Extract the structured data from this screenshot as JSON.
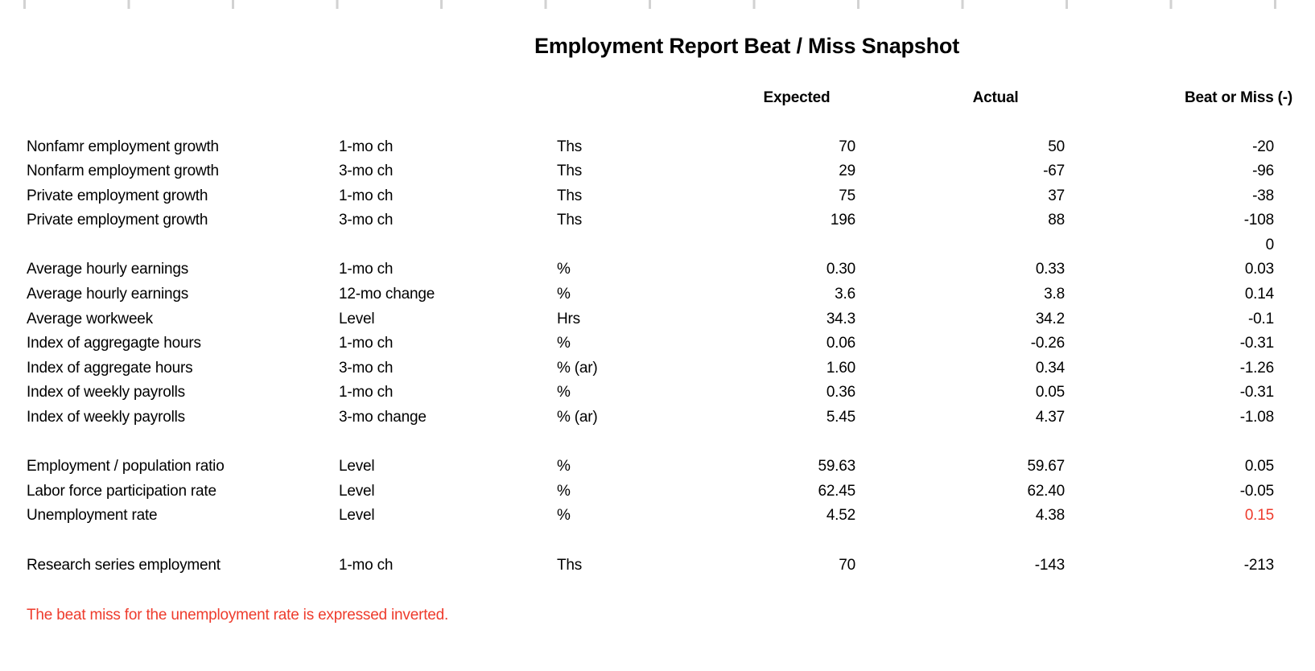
{
  "title": "Employment Report Beat / Miss Snapshot",
  "colors": {
    "text": "#000000",
    "highlight_red": "#ee3b2c",
    "gridline_gray": "#d2d2d2"
  },
  "table": {
    "headers": {
      "expected": "Expected",
      "actual": "Actual",
      "beat_or_miss": "Beat or Miss (-)"
    },
    "rows": [
      {
        "label": "Nonfamr employment growth",
        "change": "1-mo ch",
        "unit": "Ths",
        "expected": "70",
        "actual": "50",
        "beat": "-20",
        "beat_red": false
      },
      {
        "label": "Nonfarm employment growth",
        "change": "3-mo ch",
        "unit": "Ths",
        "expected": "29",
        "actual": "-67",
        "beat": "-96",
        "beat_red": false
      },
      {
        "label": "Private employment growth",
        "change": "1-mo ch",
        "unit": "Ths",
        "expected": "75",
        "actual": "37",
        "beat": "-38",
        "beat_red": false
      },
      {
        "label": "Private employment growth",
        "change": "3-mo ch",
        "unit": "Ths",
        "expected": "196",
        "actual": "88",
        "beat": "-108",
        "beat_red": false
      },
      {
        "label": "",
        "change": "",
        "unit": "",
        "expected": "",
        "actual": "",
        "beat": "0",
        "beat_red": false
      },
      {
        "label": "Average hourly earnings",
        "change": "1-mo ch",
        "unit": "%",
        "expected": "0.30",
        "actual": "0.33",
        "beat": "0.03",
        "beat_red": false
      },
      {
        "label": "Average hourly earnings",
        "change": "12-mo change",
        "unit": "%",
        "expected": "3.6",
        "actual": "3.8",
        "beat": "0.14",
        "beat_red": false
      },
      {
        "label": "Average workweek",
        "change": "Level",
        "unit": "Hrs",
        "expected": "34.3",
        "actual": "34.2",
        "beat": "-0.1",
        "beat_red": false
      },
      {
        "label": "Index of aggregagte hours",
        "change": "1-mo ch",
        "unit": "%",
        "expected": "0.06",
        "actual": "-0.26",
        "beat": "-0.31",
        "beat_red": false
      },
      {
        "label": "Index of aggregate hours",
        "change": "3-mo ch",
        "unit": "% (ar)",
        "expected": "1.60",
        "actual": "0.34",
        "beat": "-1.26",
        "beat_red": false
      },
      {
        "label": "Index of weekly payrolls",
        "change": "1-mo ch",
        "unit": "%",
        "expected": "0.36",
        "actual": "0.05",
        "beat": "-0.31",
        "beat_red": false
      },
      {
        "label": "Index of weekly payrolls",
        "change": "3-mo change",
        "unit": "% (ar)",
        "expected": "5.45",
        "actual": "4.37",
        "beat": "-1.08",
        "beat_red": false
      },
      {
        "label": "",
        "change": "",
        "unit": "",
        "expected": "",
        "actual": "",
        "beat": "",
        "beat_red": false
      },
      {
        "label": "Employment / population ratio",
        "change": "Level",
        "unit": "%",
        "expected": "59.63",
        "actual": "59.67",
        "beat": "0.05",
        "beat_red": false
      },
      {
        "label": "Labor force participation rate",
        "change": "Level",
        "unit": "%",
        "expected": "62.45",
        "actual": "62.40",
        "beat": "-0.05",
        "beat_red": false
      },
      {
        "label": "Unemployment rate",
        "change": "Level",
        "unit": "%",
        "expected": "4.52",
        "actual": "4.38",
        "beat": "0.15",
        "beat_red": true
      },
      {
        "label": "",
        "change": "",
        "unit": "",
        "expected": "",
        "actual": "",
        "beat": "",
        "beat_red": false
      },
      {
        "label": "Research series employment",
        "change": "1-mo ch",
        "unit": "Ths",
        "expected": "70",
        "actual": "-143",
        "beat": "-213",
        "beat_red": false
      }
    ]
  },
  "footnote": "The beat miss for the unemployment rate is expressed inverted."
}
